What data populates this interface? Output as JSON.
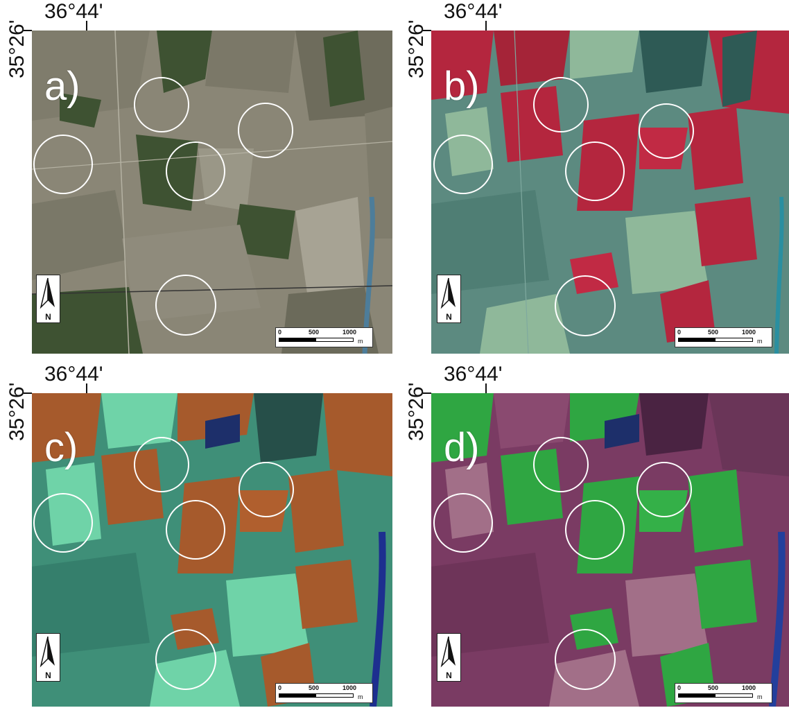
{
  "coords": {
    "longitude": "36°44'",
    "latitude": "35°26'"
  },
  "panels": [
    {
      "label": "a)",
      "style": "true-color"
    },
    {
      "label": "b)",
      "style": "false-color-red"
    },
    {
      "label": "c)",
      "style": "false-color-orange"
    },
    {
      "label": "d)",
      "style": "false-color-green-purple"
    }
  ],
  "north_arrow": {
    "letter": "N",
    "icon": "north-arrow-icon"
  },
  "scale_bar": {
    "ticks": [
      "0",
      "500",
      "1000"
    ],
    "unit": "m"
  },
  "circle_color": "#ffffff",
  "palettes": {
    "a": {
      "base": "#8a8676",
      "dark": "#3e5232",
      "mid": "#6b6a5a",
      "light": "#a7a394",
      "water": "#4d7d9a"
    },
    "b": {
      "base": "#5c8a80",
      "dark": "#2e5a55",
      "mid": "#b4263e",
      "light": "#8fb89a",
      "water": "#2a8fa0"
    },
    "c": {
      "base": "#3f8f78",
      "dark": "#264f49",
      "mid": "#a65a2c",
      "light": "#6fd3a8",
      "water": "#1d2f8f"
    },
    "d": {
      "base": "#7a3b63",
      "dark": "#4a2342",
      "mid": "#2fa642",
      "light": "#a26f88",
      "water": "#233f9c"
    }
  }
}
